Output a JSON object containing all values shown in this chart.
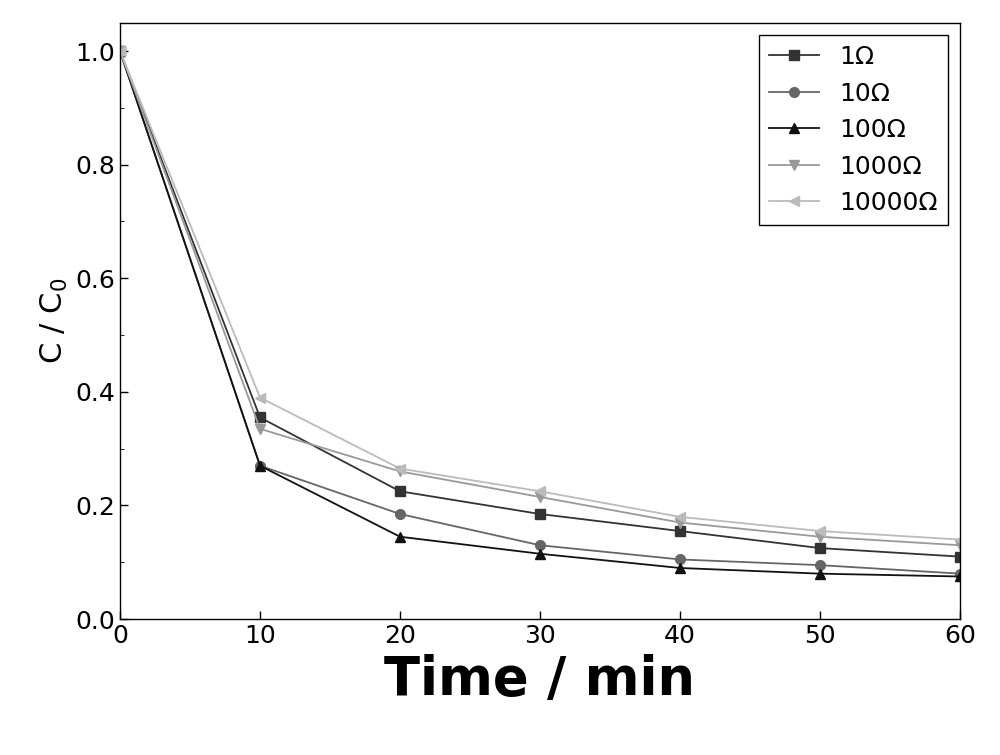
{
  "series": [
    {
      "label": "1Ω",
      "marker": "s",
      "color": "#333333",
      "markersize": 7,
      "x": [
        0,
        10,
        20,
        30,
        40,
        50,
        60
      ],
      "y": [
        1.0,
        0.355,
        0.225,
        0.185,
        0.155,
        0.125,
        0.11
      ]
    },
    {
      "label": "10Ω",
      "marker": "o",
      "color": "#666666",
      "markersize": 7,
      "x": [
        0,
        10,
        20,
        30,
        40,
        50,
        60
      ],
      "y": [
        1.0,
        0.27,
        0.185,
        0.13,
        0.105,
        0.095,
        0.08
      ]
    },
    {
      "label": "100Ω",
      "marker": "^",
      "color": "#111111",
      "markersize": 7,
      "x": [
        0,
        10,
        20,
        30,
        40,
        50,
        60
      ],
      "y": [
        1.0,
        0.27,
        0.145,
        0.115,
        0.09,
        0.08,
        0.075
      ]
    },
    {
      "label": "1000Ω",
      "marker": "v",
      "color": "#999999",
      "markersize": 7,
      "x": [
        0,
        10,
        20,
        30,
        40,
        50,
        60
      ],
      "y": [
        1.0,
        0.335,
        0.26,
        0.215,
        0.17,
        0.145,
        0.13
      ]
    },
    {
      "label": "10000Ω",
      "marker": "<",
      "color": "#bbbbbb",
      "markersize": 7,
      "x": [
        0,
        10,
        20,
        30,
        40,
        50,
        60
      ],
      "y": [
        1.0,
        0.39,
        0.265,
        0.225,
        0.18,
        0.155,
        0.14
      ]
    }
  ],
  "xlabel": "Time / min",
  "ylabel": "C / C$_0$",
  "xlim": [
    0,
    60
  ],
  "ylim": [
    0.0,
    1.05
  ],
  "xticks": [
    0,
    10,
    20,
    30,
    40,
    50,
    60
  ],
  "yticks": [
    0.0,
    0.2,
    0.4,
    0.6,
    0.8,
    1.0
  ],
  "legend_loc": "upper right",
  "legend_fontsize": 18,
  "xlabel_fontsize": 38,
  "ylabel_fontsize": 22,
  "tick_fontsize": 18,
  "linewidth": 1.3,
  "background_color": "#ffffff"
}
